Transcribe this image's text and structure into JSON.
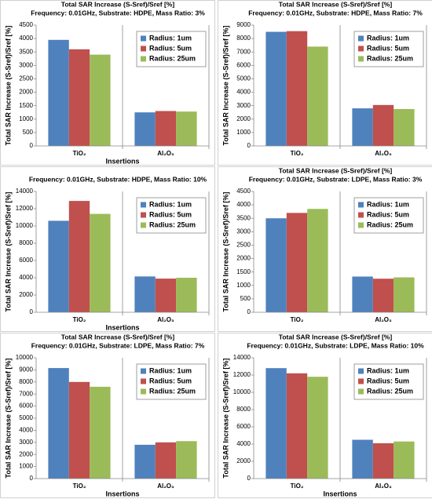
{
  "chart_data": [
    {
      "type": "bar",
      "title": "Total SAR Increase (S-Sref)/Sref [%]",
      "subtitle": "Frequency: 0.01GHz, Substrate: HDPE, Mass Ratio: 3%",
      "ylabel": "Total SAR Increase (S-Sref)/Sref [%]",
      "xlabel": "Insertions",
      "categories": [
        "TiO₂",
        "Al₂O₃"
      ],
      "series": [
        {
          "name": "Radius: 1um",
          "color": "#4f81bd",
          "values": [
            3950,
            1250
          ]
        },
        {
          "name": "Radius: 5um",
          "color": "#c0504d",
          "values": [
            3600,
            1300
          ]
        },
        {
          "name": "Radius: 25um",
          "color": "#9bbb59",
          "values": [
            3400,
            1280
          ]
        }
      ],
      "ylim": [
        0,
        4500
      ],
      "yticks": [
        0,
        500,
        1000,
        1500,
        2000,
        2500,
        3000,
        3500,
        4000,
        4500
      ],
      "legend": "upper right"
    },
    {
      "type": "bar",
      "title": "Total SAR Increase (S-Sref)/Sref [%]",
      "subtitle": "Frequency: 0.01GHz, Substrate: HDPE, Mass Ratio: 7%",
      "ylabel": "Total SAR Increase (S-Sref)/Sref [%]",
      "categories": [
        "TiO₂",
        "Al₂O₃"
      ],
      "series": [
        {
          "name": "Radius: 1um",
          "color": "#4f81bd",
          "values": [
            8500,
            2800
          ]
        },
        {
          "name": "Radius: 5um",
          "color": "#c0504d",
          "values": [
            8550,
            3050
          ]
        },
        {
          "name": "Radius: 25um",
          "color": "#9bbb59",
          "values": [
            7400,
            2750
          ]
        }
      ],
      "ylim": [
        0,
        9000
      ],
      "yticks": [
        0,
        1000,
        2000,
        3000,
        4000,
        5000,
        6000,
        7000,
        8000,
        9000
      ],
      "legend": "upper right"
    },
    {
      "type": "bar",
      "title": "",
      "subtitle": "Frequency: 0.01GHz, Substrate: HDPE, Mass Ratio: 10%",
      "ylabel": "Total SAR Increase (S-Sref)/Sref [%]",
      "xlabel": "Insertions",
      "categories": [
        "TiO₂",
        "Al₂O₃"
      ],
      "series": [
        {
          "name": "Radius: 1um",
          "color": "#4f81bd",
          "values": [
            10600,
            4150
          ]
        },
        {
          "name": "Radius: 5um",
          "color": "#c0504d",
          "values": [
            12900,
            3900
          ]
        },
        {
          "name": "Radius: 25um",
          "color": "#9bbb59",
          "values": [
            11400,
            4000
          ]
        }
      ],
      "ylim": [
        0,
        14000
      ],
      "yticks": [
        0,
        2000,
        4000,
        6000,
        8000,
        10000,
        12000,
        14000
      ],
      "legend": "upper right"
    },
    {
      "type": "bar",
      "title": "Total SAR Increase (S-Sref)/Sref [%]",
      "subtitle": "Frequency: 0.01GHz, Substrate: LDPE, Mass Ratio: 3%",
      "ylabel": "Total SAR Increase (S-Sref)/Sref [%]",
      "categories": [
        "TiO₂",
        "Al₂O₃"
      ],
      "series": [
        {
          "name": "Radius: 1um",
          "color": "#4f81bd",
          "values": [
            3500,
            1330
          ]
        },
        {
          "name": "Radius: 5um",
          "color": "#c0504d",
          "values": [
            3700,
            1250
          ]
        },
        {
          "name": "Radius: 25um",
          "color": "#9bbb59",
          "values": [
            3850,
            1300
          ]
        }
      ],
      "ylim": [
        0,
        4500
      ],
      "yticks": [
        0,
        500,
        1000,
        1500,
        2000,
        2500,
        3000,
        3500,
        4000,
        4500
      ],
      "legend": "upper right"
    },
    {
      "type": "bar",
      "title": "Total SAR Increase (S-Sref)/Sref [%]",
      "subtitle": "Frequency: 0.01GHz, Substrate: LDPE, Mass Ratio: 7%",
      "ylabel": "Total SAR Increase (S-Sref)/Sref [%]",
      "xlabel": "Insertions",
      "categories": [
        "TiO₂",
        "Al₂O₃"
      ],
      "series": [
        {
          "name": "Radius: 1um",
          "color": "#4f81bd",
          "values": [
            9150,
            2800
          ]
        },
        {
          "name": "Radius: 5um",
          "color": "#c0504d",
          "values": [
            8000,
            3000
          ]
        },
        {
          "name": "Radius: 25um",
          "color": "#9bbb59",
          "values": [
            7600,
            3100
          ]
        }
      ],
      "ylim": [
        0,
        10000
      ],
      "yticks": [
        0,
        1000,
        2000,
        3000,
        4000,
        5000,
        6000,
        7000,
        8000,
        9000,
        10000
      ],
      "legend": "upper right"
    },
    {
      "type": "bar",
      "title": "Total SAR Increase (S-Sref)/Sref [%]",
      "subtitle": "Frequency: 0.01GHz, Substrate: LDPE, Mass Ratio: 10%",
      "ylabel": "Total SAR Increase (S-Sref)/Sref [%]",
      "xlabel": "Insertions",
      "categories": [
        "TiO₂",
        "Al₂O₃"
      ],
      "series": [
        {
          "name": "Radius: 1um",
          "color": "#4f81bd",
          "values": [
            12800,
            4500
          ]
        },
        {
          "name": "Radius: 5um",
          "color": "#c0504d",
          "values": [
            12200,
            4100
          ]
        },
        {
          "name": "Radius: 25um",
          "color": "#9bbb59",
          "values": [
            11800,
            4300
          ]
        }
      ],
      "ylim": [
        0,
        14000
      ],
      "yticks": [
        0,
        2000,
        4000,
        6000,
        8000,
        10000,
        12000,
        14000
      ],
      "legend": "upper right"
    }
  ]
}
